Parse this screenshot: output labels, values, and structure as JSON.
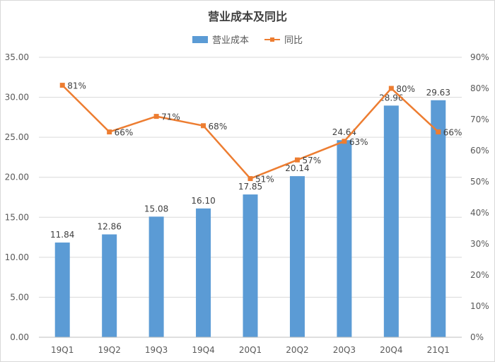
{
  "chart_data": {
    "type": "bar",
    "title": "营业成本及同比",
    "categories": [
      "19Q1",
      "19Q2",
      "19Q3",
      "19Q4",
      "20Q1",
      "20Q2",
      "20Q3",
      "20Q4",
      "21Q1"
    ],
    "series": [
      {
        "name": "营业成本",
        "kind": "bar",
        "axis": "left",
        "values": [
          11.84,
          12.86,
          15.08,
          16.1,
          17.85,
          20.14,
          24.64,
          28.96,
          29.63
        ],
        "labels": [
          "11.84",
          "12.86",
          "15.08",
          "16.10",
          "17.85",
          "20.14",
          "24.64",
          "28.96",
          "29.63"
        ]
      },
      {
        "name": "同比",
        "kind": "line",
        "axis": "right",
        "values": [
          81,
          66,
          71,
          68,
          51,
          57,
          63,
          80,
          66
        ],
        "labels": [
          "81%",
          "66%",
          "71%",
          "68%",
          "51%",
          "57%",
          "63%",
          "80%",
          "66%"
        ]
      }
    ],
    "left_axis": {
      "min": 0,
      "max": 35,
      "step": 5,
      "tick_labels": [
        "0.00",
        "5.00",
        "10.00",
        "15.00",
        "20.00",
        "25.00",
        "30.00",
        "35.00"
      ]
    },
    "right_axis": {
      "min": 0,
      "max": 90,
      "step": 10,
      "tick_labels": [
        "0%",
        "10%",
        "20%",
        "30%",
        "40%",
        "50%",
        "60%",
        "70%",
        "80%",
        "90%"
      ]
    },
    "grid": true,
    "legend_position": "top",
    "colors": {
      "bar": "#5b9bd5",
      "line": "#ed7d31",
      "grid": "#d9d9d9",
      "text": "#595959"
    }
  }
}
